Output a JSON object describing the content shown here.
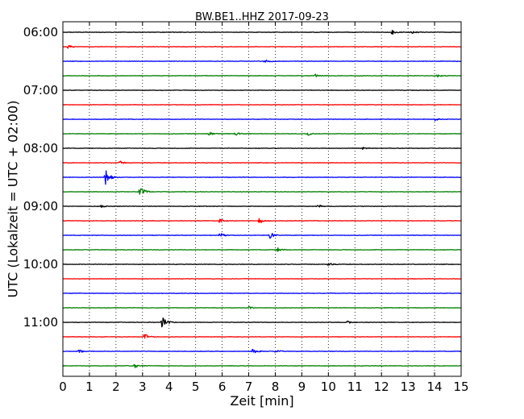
{
  "chart_data": {
    "type": "line",
    "title": "BW.BE1..HHZ 2017-09-23",
    "xlabel": "Zeit  [min]",
    "ylabel": "UTC (Lokalzeit = UTC + 02:00)",
    "xlim": [
      0,
      15
    ],
    "x_ticks": [
      "0",
      "1",
      "2",
      "3",
      "4",
      "5",
      "6",
      "7",
      "8",
      "9",
      "10",
      "11",
      "12",
      "13",
      "14",
      "15"
    ],
    "y_tick_labels": [
      "06:00",
      "07:00",
      "08:00",
      "09:00",
      "10:00",
      "11:00"
    ],
    "grid": true,
    "line_interval_minutes": 15,
    "start_time": "06:00",
    "end_time": "11:45",
    "color_cycle": [
      "#000000",
      "#ff0000",
      "#0000ff",
      "#008000"
    ],
    "traces": [
      {
        "start": "06:00",
        "events": [
          {
            "t": 12.4,
            "amp": 0.5
          },
          {
            "t": 13.1,
            "amp": 0.45
          }
        ]
      },
      {
        "start": "06:15",
        "events": [
          {
            "t": 0.2,
            "amp": 0.35
          }
        ]
      },
      {
        "start": "06:30",
        "events": [
          {
            "t": 7.6,
            "amp": 0.5
          }
        ]
      },
      {
        "start": "06:45",
        "events": [
          {
            "t": 9.5,
            "amp": 0.35
          },
          {
            "t": 14.1,
            "amp": 0.3
          }
        ]
      },
      {
        "start": "07:00",
        "events": []
      },
      {
        "start": "07:15",
        "events": []
      },
      {
        "start": "07:30",
        "events": [
          {
            "t": 14.0,
            "amp": 0.3
          }
        ]
      },
      {
        "start": "07:45",
        "events": [
          {
            "t": 5.5,
            "amp": 0.4
          },
          {
            "t": 6.5,
            "amp": 0.35
          },
          {
            "t": 9.2,
            "amp": 0.4
          }
        ]
      },
      {
        "start": "08:00",
        "events": [
          {
            "t": 11.3,
            "amp": 0.25
          }
        ]
      },
      {
        "start": "08:15",
        "events": [
          {
            "t": 2.15,
            "amp": 0.4
          }
        ]
      },
      {
        "start": "08:30",
        "events": [
          {
            "t": 1.6,
            "amp": 2.1
          }
        ]
      },
      {
        "start": "08:45",
        "events": [
          {
            "t": 2.9,
            "amp": 1.3
          }
        ]
      },
      {
        "start": "09:00",
        "events": [
          {
            "t": 1.45,
            "amp": 0.3
          },
          {
            "t": 9.6,
            "amp": 0.3
          }
        ]
      },
      {
        "start": "09:15",
        "events": [
          {
            "t": 5.9,
            "amp": 0.4
          },
          {
            "t": 7.4,
            "amp": 0.8
          }
        ]
      },
      {
        "start": "09:30",
        "events": [
          {
            "t": 5.9,
            "amp": 0.7
          },
          {
            "t": 7.8,
            "amp": 0.75
          }
        ]
      },
      {
        "start": "09:45",
        "events": [
          {
            "t": 8.1,
            "amp": 0.5
          }
        ]
      },
      {
        "start": "10:00",
        "events": [
          {
            "t": 10.0,
            "amp": 0.25
          }
        ]
      },
      {
        "start": "10:15",
        "events": []
      },
      {
        "start": "10:30",
        "events": []
      },
      {
        "start": "10:45",
        "events": [
          {
            "t": 7.0,
            "amp": 0.3
          }
        ]
      },
      {
        "start": "11:00",
        "events": [
          {
            "t": 3.75,
            "amp": 1.6
          },
          {
            "t": 10.7,
            "amp": 0.3
          }
        ]
      },
      {
        "start": "11:15",
        "events": [
          {
            "t": 3.05,
            "amp": 0.85
          }
        ]
      },
      {
        "start": "11:30",
        "events": [
          {
            "t": 0.6,
            "amp": 0.35
          },
          {
            "t": 7.15,
            "amp": 0.8
          },
          {
            "t": 8.0,
            "amp": 0.35
          }
        ]
      },
      {
        "start": "11:45",
        "events": [
          {
            "t": 2.7,
            "amp": 0.7
          }
        ]
      }
    ]
  }
}
